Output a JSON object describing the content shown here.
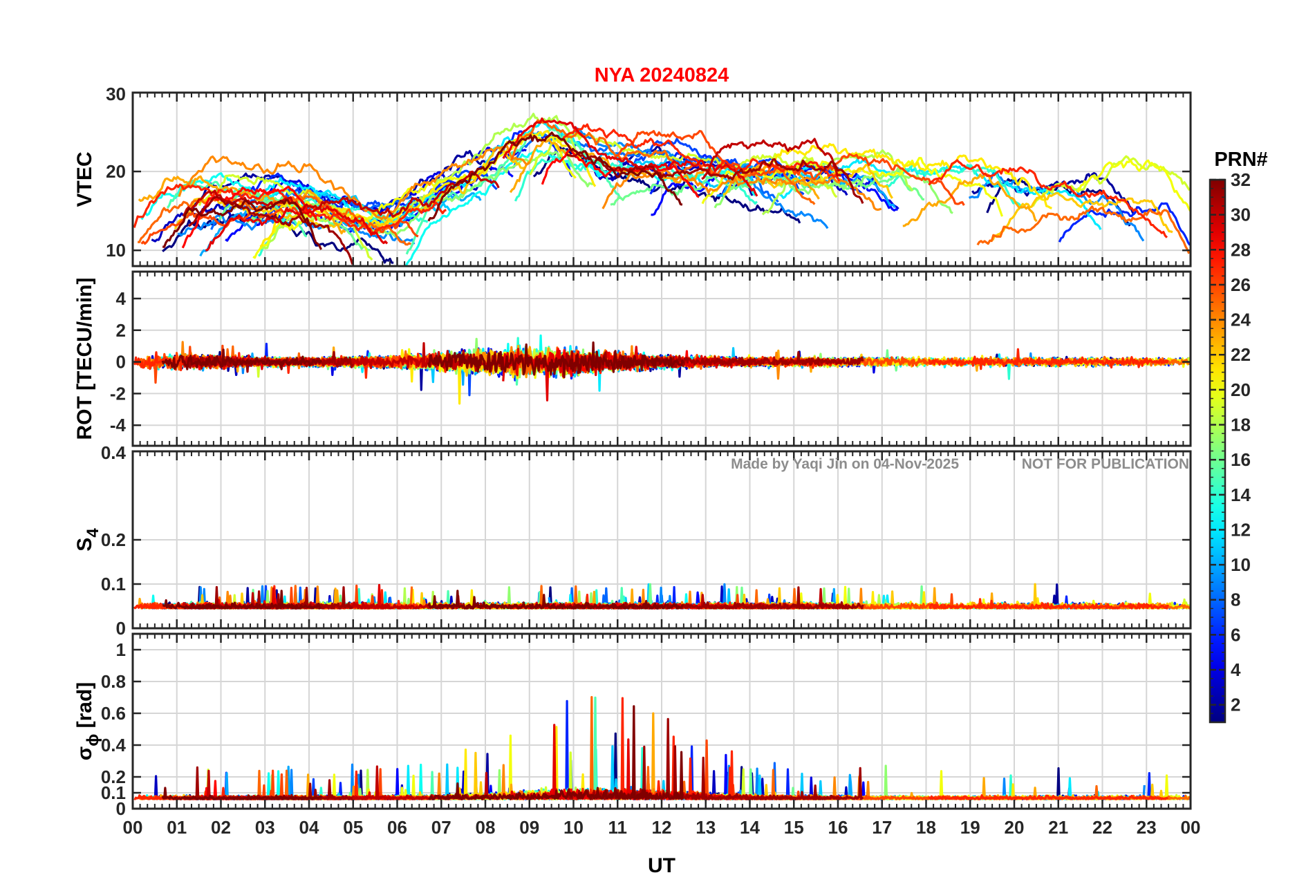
{
  "figure": {
    "title": "NYA   20240824",
    "title_color": "#ff0000",
    "watermark_left": "Made by Yaqi Jin on 04-Nov-2025",
    "watermark_right": "NOT FOR PUBLICATION",
    "watermark_color": "#8c8c8c"
  },
  "chart_data": {
    "type": "line",
    "x_axis": {
      "label": "UT",
      "range": [
        0,
        24
      ],
      "tick_values": [
        0,
        1,
        2,
        3,
        4,
        5,
        6,
        7,
        8,
        9,
        10,
        11,
        12,
        13,
        14,
        15,
        16,
        17,
        18,
        19,
        20,
        21,
        22,
        23,
        24
      ],
      "tick_labels": [
        "00",
        "01",
        "02",
        "03",
        "04",
        "05",
        "06",
        "07",
        "08",
        "09",
        "10",
        "11",
        "12",
        "13",
        "14",
        "15",
        "16",
        "17",
        "18",
        "19",
        "20",
        "21",
        "22",
        "23",
        "00"
      ]
    },
    "panels": [
      {
        "ylabel": "VTEC",
        "ylim": [
          8,
          30
        ],
        "yticks": [
          10,
          20,
          30
        ],
        "ytick_labels": [
          "10",
          "20",
          "30"
        ],
        "grid": true
      },
      {
        "ylabel": "ROT [TECU/min]",
        "ylim": [
          -5.3,
          5.7
        ],
        "yticks": [
          -4,
          -2,
          0,
          2,
          4
        ],
        "ytick_labels": [
          "-4",
          "-2",
          "0",
          "2",
          "4"
        ],
        "grid": true
      },
      {
        "ylabel": "S",
        "ylabel_subscript": "4",
        "ylim": [
          0,
          0.4
        ],
        "yticks": [
          0,
          0.1,
          0.2,
          0.4
        ],
        "ytick_labels": [
          "0",
          "0.1",
          "0.2",
          "0.4"
        ],
        "grid": true
      },
      {
        "ylabel": "σ",
        "ylabel_subscript": "ϕ",
        "ylabel_suffix": "[rad]",
        "ylim": [
          0,
          1.1
        ],
        "yticks": [
          0,
          0.1,
          0.2,
          0.4,
          0.6,
          0.8,
          1
        ],
        "ytick_labels": [
          "0",
          "0.1",
          "0.2",
          "0.4",
          "0.6",
          "0.8",
          "1"
        ],
        "grid": true
      }
    ],
    "colorbar": {
      "title": "PRN#",
      "range": [
        1,
        32
      ],
      "tick_values": [
        2,
        4,
        6,
        8,
        10,
        12,
        14,
        16,
        18,
        20,
        22,
        24,
        26,
        28,
        30,
        32
      ],
      "tick_labels": [
        "2",
        "4",
        "6",
        "8",
        "10",
        "12",
        "14",
        "16",
        "18",
        "20",
        "22",
        "24",
        "26",
        "28",
        "30",
        "32"
      ],
      "colormap": "jet"
    },
    "series_prn": [
      1,
      2,
      3,
      4,
      5,
      6,
      7,
      8,
      9,
      10,
      11,
      12,
      13,
      14,
      15,
      16,
      17,
      18,
      19,
      20,
      21,
      22,
      23,
      24,
      25,
      26,
      27,
      28,
      29,
      30,
      31,
      32
    ],
    "series_note": ""
  }
}
